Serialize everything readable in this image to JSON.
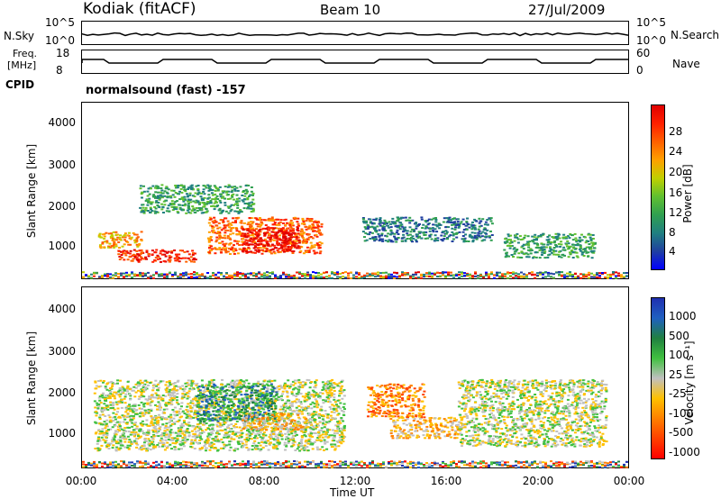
{
  "header": {
    "station": "Kodiak (fitACF)",
    "beam": "Beam 10",
    "date": "27/Jul/2009"
  },
  "strip": {
    "nsky_label": "N.Sky",
    "nsky_ticks": [
      "10^5",
      "10^0"
    ],
    "nsearch_label": "N.Search",
    "nsearch_ticks": [
      "10^5",
      "10^0"
    ],
    "freq_label": "Freq.",
    "freq_unit": "[MHz]",
    "freq_ticks": [
      "18",
      "8"
    ],
    "nave_label": "Nave",
    "nave_ticks": [
      "60",
      "0"
    ],
    "cpid_label": "CPID",
    "cpid_text": "normalsound (fast) -157"
  },
  "chart_data": [
    {
      "type": "heatmap",
      "name": "power",
      "ylabel": "Slant Range [km]",
      "yticks": [
        "4000",
        "3000",
        "2000",
        "1000"
      ],
      "ylim": [
        180,
        4500
      ],
      "colorbar_label": "Power [dB]",
      "colorbar_ticks": [
        "28",
        "24",
        "20",
        "16",
        "12",
        "8",
        "4"
      ],
      "colors": [
        "#0000ff",
        "#2040a0",
        "#208080",
        "#30a050",
        "#60c030",
        "#c0d000",
        "#ffa000",
        "#ff6000",
        "#ff2000",
        "#e00000"
      ],
      "echo_regions": [
        {
          "t0": 0.7,
          "t1": 2.6,
          "r0": 950,
          "r1": 1350,
          "level": 6
        },
        {
          "t0": 1.5,
          "t1": 5.0,
          "r0": 600,
          "r1": 900,
          "level": 8
        },
        {
          "t0": 5.5,
          "t1": 10.5,
          "r0": 800,
          "r1": 1700,
          "level": 7
        },
        {
          "t0": 7.0,
          "t1": 9.5,
          "r0": 850,
          "r1": 1450,
          "level": 9
        },
        {
          "t0": 2.5,
          "t1": 7.5,
          "r0": 1800,
          "r1": 2500,
          "level": 3
        },
        {
          "t0": 12.3,
          "t1": 18.0,
          "r0": 1100,
          "r1": 1700,
          "level": 2
        },
        {
          "t0": 18.5,
          "t1": 22.5,
          "r0": 700,
          "r1": 1300,
          "level": 3
        }
      ]
    },
    {
      "type": "heatmap",
      "name": "velocity",
      "ylabel": "Slant Range [km]",
      "yticks": [
        "4000",
        "3000",
        "2000",
        "1000"
      ],
      "ylim": [
        180,
        4500
      ],
      "colorbar_label": "Velocity [m s⁻¹]",
      "colorbar_ticks": [
        "1000",
        "500",
        "100",
        "25",
        "-25",
        "-100",
        "-500",
        "-1000"
      ],
      "colors": [
        "#2030b0",
        "#2060c0",
        "#208040",
        "#40c040",
        "#c0c0c0",
        "#ffc000",
        "#ff8000",
        "#ff4000",
        "#ff0000"
      ],
      "echo_regions": [
        {
          "t0": 0.5,
          "t1": 11.5,
          "r0": 600,
          "r1": 2300,
          "level": 4
        },
        {
          "t0": 5.0,
          "t1": 8.5,
          "r0": 1300,
          "r1": 2200,
          "level": 2
        },
        {
          "t0": 7.0,
          "t1": 10.0,
          "r0": 1100,
          "r1": 1500,
          "level": 5
        },
        {
          "t0": 12.5,
          "t1": 15.0,
          "r0": 1400,
          "r1": 2200,
          "level": 6
        },
        {
          "t0": 13.5,
          "t1": 16.5,
          "r0": 900,
          "r1": 1400,
          "level": 5
        },
        {
          "t0": 16.5,
          "t1": 23.0,
          "r0": 700,
          "r1": 2300,
          "level": 4
        }
      ]
    }
  ],
  "xaxis": {
    "label": "Time UT",
    "ticks": [
      "00:00",
      "04:00",
      "08:00",
      "12:00",
      "16:00",
      "20:00",
      "00:00"
    ]
  }
}
